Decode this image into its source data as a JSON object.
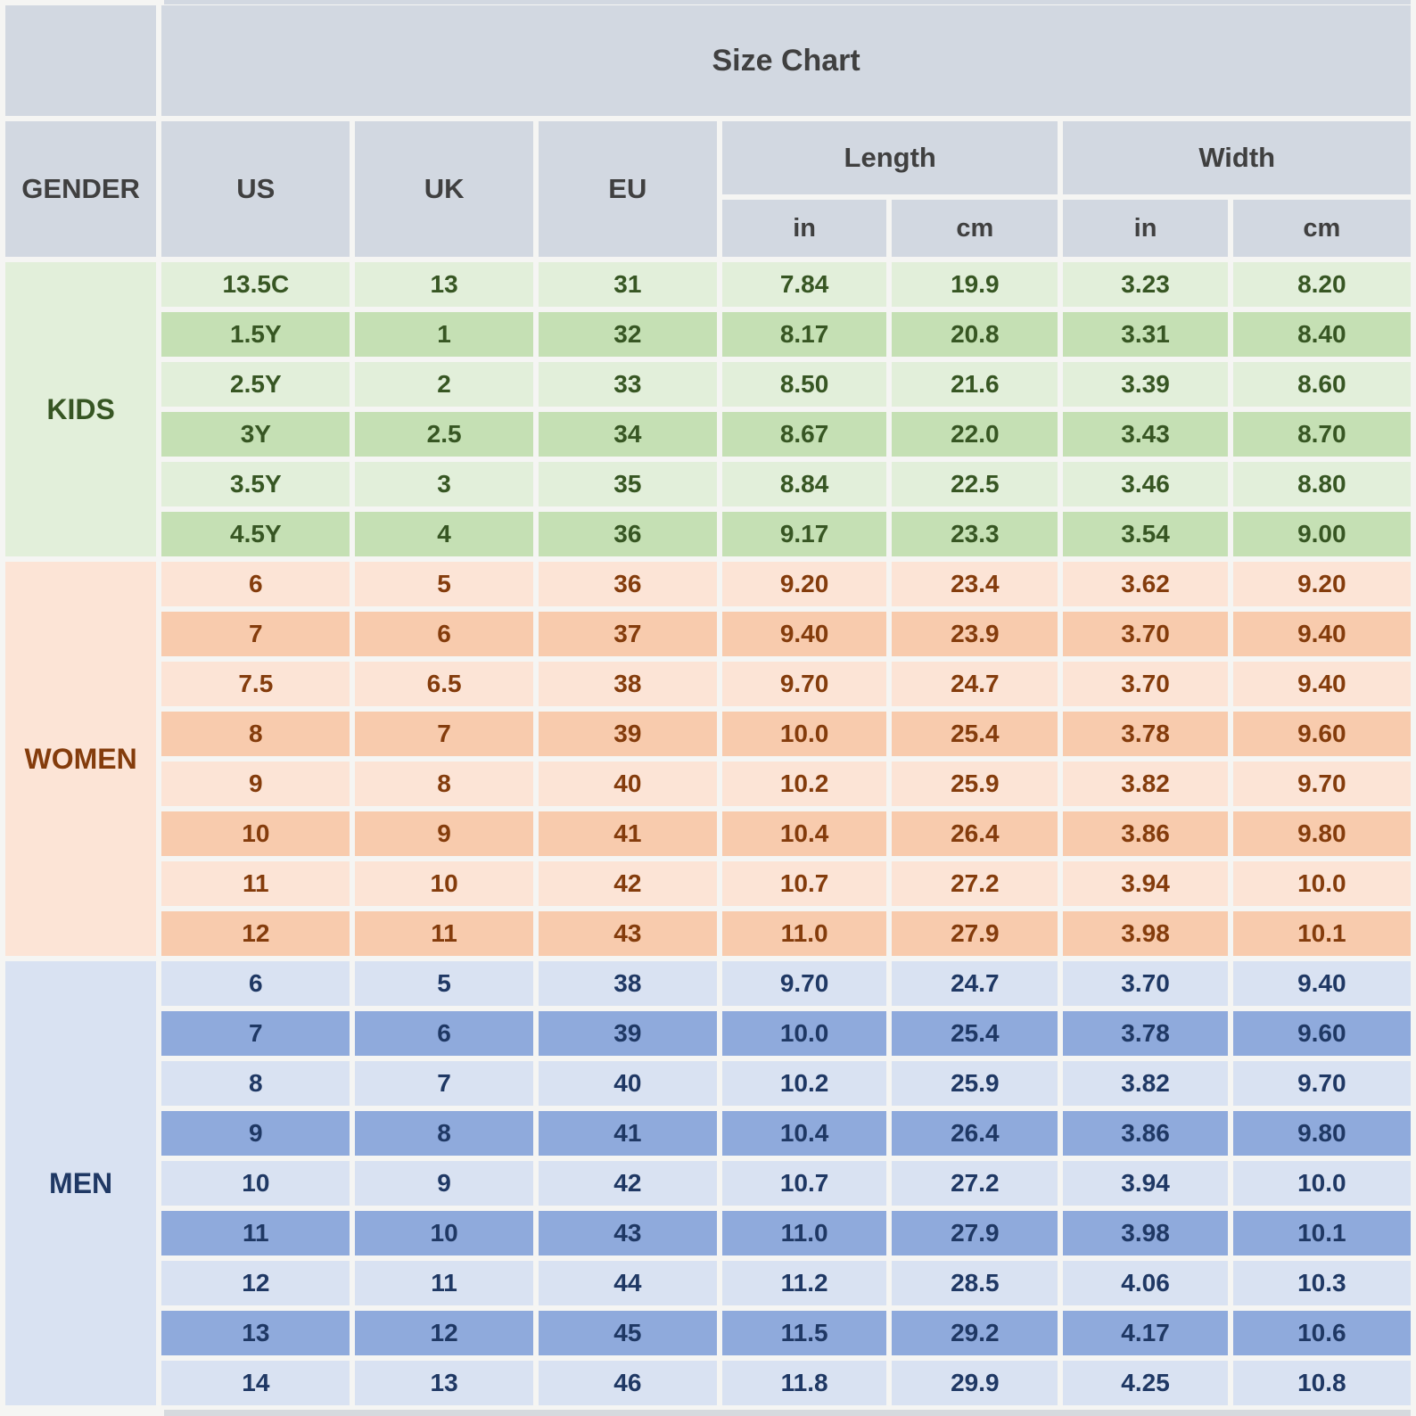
{
  "title": "Size Chart",
  "header": {
    "gender": "GENDER",
    "us": "US",
    "uk": "UK",
    "eu": "EU",
    "length": "Length",
    "width": "Width",
    "length_in": "in",
    "length_cm": "cm",
    "width_in": "in",
    "width_cm": "cm"
  },
  "colors": {
    "header_bg": "#d2d8e1",
    "header_text": "#404040",
    "kids_bg_light": "#e2efda",
    "kids_bg_dark": "#c5e0b4",
    "kids_text": "#375623",
    "women_bg_light": "#fce4d6",
    "women_bg_dark": "#f8cbad",
    "women_text": "#843c0c",
    "men_bg_light": "#d9e2f2",
    "men_bg_dark": "#8faadc",
    "men_text": "#1f3864",
    "gap_bg": "#f5f5f3",
    "sliver_top": "#d2d8e1",
    "sliver_bottom": "#d6dade"
  },
  "sections": [
    {
      "key": "kids",
      "label": "KIDS",
      "rows": [
        [
          "13.5C",
          "13",
          "31",
          "7.84",
          "19.9",
          "3.23",
          "8.20"
        ],
        [
          "1.5Y",
          "1",
          "32",
          "8.17",
          "20.8",
          "3.31",
          "8.40"
        ],
        [
          "2.5Y",
          "2",
          "33",
          "8.50",
          "21.6",
          "3.39",
          "8.60"
        ],
        [
          "3Y",
          "2.5",
          "34",
          "8.67",
          "22.0",
          "3.43",
          "8.70"
        ],
        [
          "3.5Y",
          "3",
          "35",
          "8.84",
          "22.5",
          "3.46",
          "8.80"
        ],
        [
          "4.5Y",
          "4",
          "36",
          "9.17",
          "23.3",
          "3.54",
          "9.00"
        ]
      ]
    },
    {
      "key": "women",
      "label": "WOMEN",
      "rows": [
        [
          "6",
          "5",
          "36",
          "9.20",
          "23.4",
          "3.62",
          "9.20"
        ],
        [
          "7",
          "6",
          "37",
          "9.40",
          "23.9",
          "3.70",
          "9.40"
        ],
        [
          "7.5",
          "6.5",
          "38",
          "9.70",
          "24.7",
          "3.70",
          "9.40"
        ],
        [
          "8",
          "7",
          "39",
          "10.0",
          "25.4",
          "3.78",
          "9.60"
        ],
        [
          "9",
          "8",
          "40",
          "10.2",
          "25.9",
          "3.82",
          "9.70"
        ],
        [
          "10",
          "9",
          "41",
          "10.4",
          "26.4",
          "3.86",
          "9.80"
        ],
        [
          "11",
          "10",
          "42",
          "10.7",
          "27.2",
          "3.94",
          "10.0"
        ],
        [
          "12",
          "11",
          "43",
          "11.0",
          "27.9",
          "3.98",
          "10.1"
        ]
      ]
    },
    {
      "key": "men",
      "label": "MEN",
      "rows": [
        [
          "6",
          "5",
          "38",
          "9.70",
          "24.7",
          "3.70",
          "9.40"
        ],
        [
          "7",
          "6",
          "39",
          "10.0",
          "25.4",
          "3.78",
          "9.60"
        ],
        [
          "8",
          "7",
          "40",
          "10.2",
          "25.9",
          "3.82",
          "9.70"
        ],
        [
          "9",
          "8",
          "41",
          "10.4",
          "26.4",
          "3.86",
          "9.80"
        ],
        [
          "10",
          "9",
          "42",
          "10.7",
          "27.2",
          "3.94",
          "10.0"
        ],
        [
          "11",
          "10",
          "43",
          "11.0",
          "27.9",
          "3.98",
          "10.1"
        ],
        [
          "12",
          "11",
          "44",
          "11.2",
          "28.5",
          "4.06",
          "10.3"
        ],
        [
          "13",
          "12",
          "45",
          "11.5",
          "29.2",
          "4.17",
          "10.6"
        ],
        [
          "14",
          "13",
          "46",
          "11.8",
          "29.9",
          "4.25",
          "10.8"
        ]
      ]
    }
  ],
  "chart_data": {
    "type": "table",
    "title": "Size Chart",
    "columns": [
      "GENDER",
      "US",
      "UK",
      "EU",
      "Length in",
      "Length cm",
      "Width in",
      "Width cm"
    ],
    "rows": [
      [
        "KIDS",
        "13.5C",
        "13",
        "31",
        "7.84",
        "19.9",
        "3.23",
        "8.20"
      ],
      [
        "KIDS",
        "1.5Y",
        "1",
        "32",
        "8.17",
        "20.8",
        "3.31",
        "8.40"
      ],
      [
        "KIDS",
        "2.5Y",
        "2",
        "33",
        "8.50",
        "21.6",
        "3.39",
        "8.60"
      ],
      [
        "KIDS",
        "3Y",
        "2.5",
        "34",
        "8.67",
        "22.0",
        "3.43",
        "8.70"
      ],
      [
        "KIDS",
        "3.5Y",
        "3",
        "35",
        "8.84",
        "22.5",
        "3.46",
        "8.80"
      ],
      [
        "KIDS",
        "4.5Y",
        "4",
        "36",
        "9.17",
        "23.3",
        "3.54",
        "9.00"
      ],
      [
        "WOMEN",
        "6",
        "5",
        "36",
        "9.20",
        "23.4",
        "3.62",
        "9.20"
      ],
      [
        "WOMEN",
        "7",
        "6",
        "37",
        "9.40",
        "23.9",
        "3.70",
        "9.40"
      ],
      [
        "WOMEN",
        "7.5",
        "6.5",
        "38",
        "9.70",
        "24.7",
        "3.70",
        "9.40"
      ],
      [
        "WOMEN",
        "8",
        "7",
        "39",
        "10.0",
        "25.4",
        "3.78",
        "9.60"
      ],
      [
        "WOMEN",
        "9",
        "8",
        "40",
        "10.2",
        "25.9",
        "3.82",
        "9.70"
      ],
      [
        "WOMEN",
        "10",
        "9",
        "41",
        "10.4",
        "26.4",
        "3.86",
        "9.80"
      ],
      [
        "WOMEN",
        "11",
        "10",
        "42",
        "10.7",
        "27.2",
        "3.94",
        "10.0"
      ],
      [
        "WOMEN",
        "12",
        "11",
        "43",
        "11.0",
        "27.9",
        "3.98",
        "10.1"
      ],
      [
        "MEN",
        "6",
        "5",
        "38",
        "9.70",
        "24.7",
        "3.70",
        "9.40"
      ],
      [
        "MEN",
        "7",
        "6",
        "39",
        "10.0",
        "25.4",
        "3.78",
        "9.60"
      ],
      [
        "MEN",
        "8",
        "7",
        "40",
        "10.2",
        "25.9",
        "3.82",
        "9.70"
      ],
      [
        "MEN",
        "9",
        "8",
        "41",
        "10.4",
        "26.4",
        "3.86",
        "9.80"
      ],
      [
        "MEN",
        "10",
        "9",
        "42",
        "10.7",
        "27.2",
        "3.94",
        "10.0"
      ],
      [
        "MEN",
        "11",
        "10",
        "43",
        "11.0",
        "27.9",
        "3.98",
        "10.1"
      ],
      [
        "MEN",
        "12",
        "11",
        "44",
        "11.2",
        "28.5",
        "4.06",
        "10.3"
      ],
      [
        "MEN",
        "13",
        "12",
        "45",
        "11.5",
        "29.2",
        "4.17",
        "10.6"
      ],
      [
        "MEN",
        "14",
        "13",
        "46",
        "11.8",
        "29.9",
        "4.25",
        "10.8"
      ]
    ]
  }
}
